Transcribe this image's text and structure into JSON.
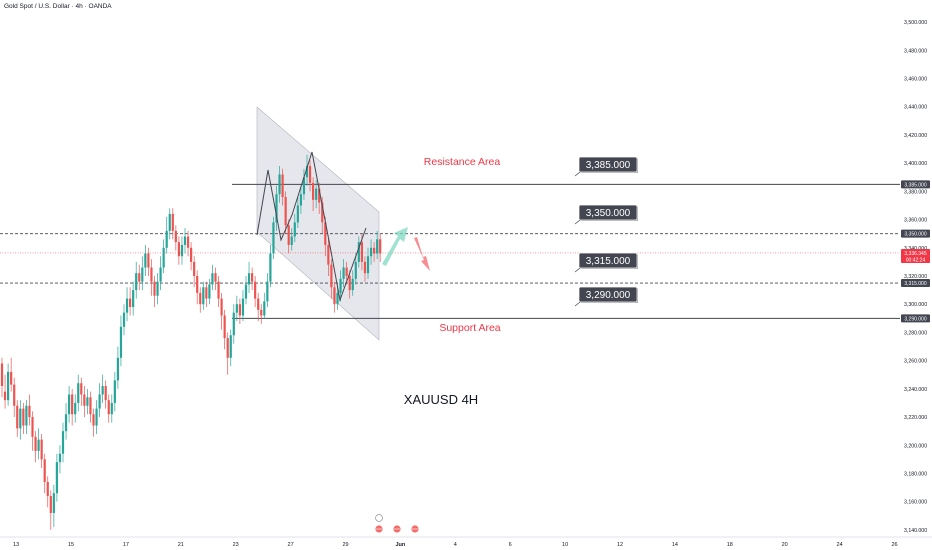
{
  "header": {
    "title": "Gold Spot / U.S. Dollar · 4h · OANDA"
  },
  "chart_data": {
    "type": "candlestick",
    "title": "XAUUSD 4H",
    "ylim": [
      3130,
      3510
    ],
    "y_ticks": [
      3140,
      3160,
      3180,
      3200,
      3220,
      3240,
      3260,
      3280,
      3300,
      3320,
      3340,
      3360,
      3380,
      3400,
      3420,
      3440,
      3460,
      3480,
      3500
    ],
    "y_tick_labels": [
      "3,140.000",
      "3,160.000",
      "3,180.000",
      "3,200.000",
      "3,220.000",
      "3,240.000",
      "3,260.000",
      "3,280.000",
      "3,300.000",
      "3,320.000",
      "3,340.000",
      "3,360.000",
      "3,380.000",
      "3,400.000",
      "3,420.000",
      "3,440.000",
      "3,460.000",
      "3,480.000",
      "3,500.000"
    ],
    "x_tick_labels": [
      "13",
      "15",
      "17",
      "21",
      "23",
      "27",
      "29",
      "Jun",
      "4",
      "6",
      "10",
      "12",
      "14",
      "18",
      "20",
      "24",
      "26",
      "Jul",
      "3",
      "5",
      "9",
      "11",
      "15",
      "17",
      "19",
      "23"
    ],
    "x_tick_index": [
      2,
      20,
      38,
      56,
      74,
      92,
      110,
      128,
      146,
      164,
      182,
      200,
      218,
      236,
      254,
      272,
      290,
      308,
      326,
      344,
      362,
      380,
      398,
      416,
      434,
      452
    ],
    "x_tick_bold": [
      "Jun",
      "Jul"
    ],
    "candles": [
      [
        3258,
        3242,
        3262,
        3234
      ],
      [
        3238,
        3232,
        3250,
        3226
      ],
      [
        3232,
        3252,
        3258,
        3228
      ],
      [
        3252,
        3243,
        3262,
        3238
      ],
      [
        3243,
        3228,
        3248,
        3220
      ],
      [
        3228,
        3212,
        3232,
        3206
      ],
      [
        3212,
        3226,
        3232,
        3204
      ],
      [
        3226,
        3214,
        3230,
        3208
      ],
      [
        3214,
        3228,
        3232,
        3208
      ],
      [
        3228,
        3220,
        3236,
        3214
      ],
      [
        3220,
        3206,
        3224,
        3196
      ],
      [
        3206,
        3196,
        3210,
        3188
      ],
      [
        3196,
        3204,
        3212,
        3190
      ],
      [
        3204,
        3190,
        3208,
        3184
      ],
      [
        3190,
        3174,
        3194,
        3166
      ],
      [
        3174,
        3164,
        3178,
        3156
      ],
      [
        3164,
        3152,
        3168,
        3140
      ],
      [
        3152,
        3166,
        3172,
        3142
      ],
      [
        3166,
        3188,
        3194,
        3160
      ],
      [
        3188,
        3194,
        3200,
        3180
      ],
      [
        3194,
        3210,
        3216,
        3188
      ],
      [
        3210,
        3222,
        3230,
        3204
      ],
      [
        3222,
        3236,
        3242,
        3216
      ],
      [
        3236,
        3222,
        3240,
        3214
      ],
      [
        3222,
        3230,
        3236,
        3216
      ],
      [
        3230,
        3244,
        3250,
        3224
      ],
      [
        3244,
        3236,
        3248,
        3228
      ],
      [
        3236,
        3228,
        3242,
        3220
      ],
      [
        3228,
        3234,
        3240,
        3222
      ],
      [
        3234,
        3222,
        3238,
        3216
      ],
      [
        3222,
        3214,
        3226,
        3206
      ],
      [
        3214,
        3226,
        3232,
        3208
      ],
      [
        3226,
        3236,
        3244,
        3220
      ],
      [
        3236,
        3242,
        3250,
        3230
      ],
      [
        3242,
        3232,
        3246,
        3226
      ],
      [
        3232,
        3222,
        3236,
        3216
      ],
      [
        3222,
        3230,
        3236,
        3216
      ],
      [
        3230,
        3246,
        3252,
        3224
      ],
      [
        3246,
        3262,
        3270,
        3240
      ],
      [
        3262,
        3284,
        3292,
        3256
      ],
      [
        3284,
        3294,
        3300,
        3278
      ],
      [
        3294,
        3304,
        3312,
        3288
      ],
      [
        3304,
        3298,
        3312,
        3292
      ],
      [
        3298,
        3310,
        3316,
        3292
      ],
      [
        3310,
        3322,
        3330,
        3304
      ],
      [
        3322,
        3316,
        3328,
        3310
      ],
      [
        3316,
        3326,
        3334,
        3310
      ],
      [
        3326,
        3336,
        3342,
        3320
      ],
      [
        3336,
        3326,
        3340,
        3320
      ],
      [
        3326,
        3316,
        3332,
        3306
      ],
      [
        3316,
        3306,
        3320,
        3298
      ],
      [
        3306,
        3316,
        3322,
        3300
      ],
      [
        3316,
        3326,
        3334,
        3310
      ],
      [
        3326,
        3340,
        3346,
        3322
      ],
      [
        3340,
        3352,
        3362,
        3336
      ],
      [
        3352,
        3364,
        3368,
        3346
      ],
      [
        3364,
        3352,
        3368,
        3346
      ],
      [
        3352,
        3344,
        3356,
        3338
      ],
      [
        3344,
        3334,
        3348,
        3328
      ],
      [
        3334,
        3342,
        3348,
        3328
      ],
      [
        3342,
        3348,
        3354,
        3336
      ],
      [
        3348,
        3340,
        3352,
        3334
      ],
      [
        3340,
        3330,
        3344,
        3324
      ],
      [
        3330,
        3320,
        3334,
        3312
      ],
      [
        3320,
        3308,
        3324,
        3300
      ],
      [
        3308,
        3300,
        3312,
        3294
      ],
      [
        3300,
        3312,
        3316,
        3296
      ],
      [
        3312,
        3304,
        3316,
        3298
      ],
      [
        3304,
        3314,
        3318,
        3300
      ],
      [
        3314,
        3322,
        3328,
        3310
      ],
      [
        3322,
        3316,
        3326,
        3310
      ],
      [
        3316,
        3304,
        3320,
        3298
      ],
      [
        3304,
        3292,
        3308,
        3282
      ],
      [
        3292,
        3276,
        3296,
        3268
      ],
      [
        3276,
        3262,
        3280,
        3250
      ],
      [
        3262,
        3278,
        3282,
        3256
      ],
      [
        3278,
        3294,
        3300,
        3272
      ],
      [
        3294,
        3300,
        3306,
        3288
      ],
      [
        3300,
        3292,
        3304,
        3286
      ],
      [
        3292,
        3304,
        3310,
        3288
      ],
      [
        3304,
        3314,
        3320,
        3300
      ],
      [
        3314,
        3322,
        3330,
        3308
      ],
      [
        3322,
        3316,
        3326,
        3310
      ],
      [
        3316,
        3304,
        3320,
        3298
      ],
      [
        3304,
        3296,
        3308,
        3288
      ],
      [
        3296,
        3292,
        3300,
        3286
      ],
      [
        3292,
        3302,
        3308,
        3290
      ],
      [
        3302,
        3316,
        3322,
        3298
      ],
      [
        3316,
        3336,
        3342,
        3312
      ],
      [
        3336,
        3358,
        3362,
        3332
      ],
      [
        3358,
        3378,
        3384,
        3352
      ],
      [
        3378,
        3392,
        3398,
        3372
      ],
      [
        3392,
        3376,
        3396,
        3370
      ],
      [
        3376,
        3356,
        3380,
        3350
      ],
      [
        3356,
        3342,
        3360,
        3336
      ],
      [
        3342,
        3348,
        3354,
        3338
      ],
      [
        3348,
        3358,
        3364,
        3344
      ],
      [
        3358,
        3370,
        3376,
        3354
      ],
      [
        3370,
        3378,
        3384,
        3364
      ],
      [
        3378,
        3390,
        3396,
        3374
      ],
      [
        3390,
        3398,
        3406,
        3384
      ],
      [
        3398,
        3386,
        3402,
        3380
      ],
      [
        3386,
        3374,
        3390,
        3366
      ],
      [
        3374,
        3382,
        3388,
        3368
      ],
      [
        3382,
        3372,
        3386,
        3364
      ],
      [
        3372,
        3358,
        3376,
        3350
      ],
      [
        3358,
        3342,
        3362,
        3334
      ],
      [
        3342,
        3328,
        3346,
        3320
      ],
      [
        3328,
        3312,
        3332,
        3304
      ],
      [
        3312,
        3300,
        3316,
        3294
      ],
      [
        3300,
        3308,
        3314,
        3296
      ],
      [
        3308,
        3318,
        3324,
        3302
      ],
      [
        3318,
        3326,
        3332,
        3312
      ],
      [
        3326,
        3320,
        3330,
        3314
      ],
      [
        3320,
        3310,
        3324,
        3304
      ],
      [
        3310,
        3318,
        3324,
        3306
      ],
      [
        3318,
        3330,
        3336,
        3314
      ],
      [
        3330,
        3344,
        3348,
        3326
      ],
      [
        3344,
        3330,
        3350,
        3324
      ],
      [
        3330,
        3322,
        3334,
        3316
      ],
      [
        3322,
        3334,
        3340,
        3318
      ],
      [
        3334,
        3340,
        3346,
        3328
      ],
      [
        3340,
        3336,
        3344,
        3330
      ],
      [
        3336,
        3346,
        3352,
        3332
      ],
      [
        3346,
        3336,
        3350,
        3330
      ]
    ],
    "resistance": {
      "label": "Resistance Area",
      "value": 3385,
      "tag": "3,385.000"
    },
    "support": {
      "label": "Support Area",
      "value": 3290,
      "tag": "3,290.000"
    },
    "levels": [
      {
        "value": 3350,
        "tag": "3,350.000",
        "style": "dashed"
      },
      {
        "value": 3315,
        "tag": "3,315.000",
        "style": "dashed"
      }
    ],
    "last_price": {
      "value": 3336.345,
      "label": "3,336.345",
      "timer": "00:42:24"
    },
    "arrows": {
      "up_color": "#7fd8c0",
      "down_color": "#f4666c"
    },
    "colors": {
      "up": "#26a69a",
      "down": "#ef5350",
      "channel_fill": "#d1d4dc",
      "line": "#434651",
      "price_line": "#f23645",
      "tag_bg": "#434651"
    }
  }
}
